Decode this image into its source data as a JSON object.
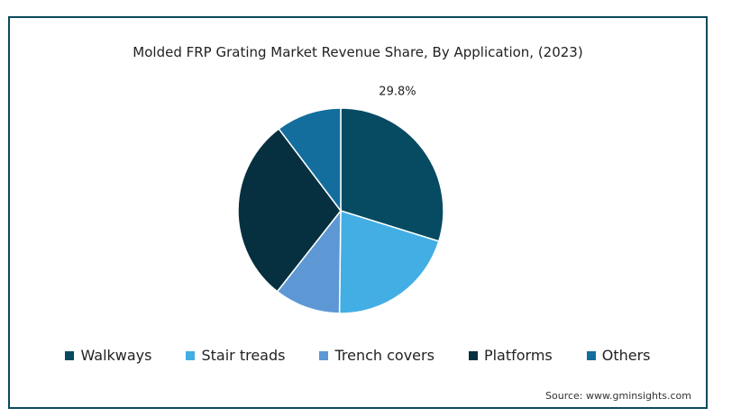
{
  "chart_data": {
    "type": "pie",
    "title": "Molded FRP Grating Market Revenue Share, By Application, (2023)",
    "categories": [
      "Walkways",
      "Stair treads",
      "Trench covers",
      "Platforms",
      "Others"
    ],
    "values": [
      29.8,
      20.4,
      10.4,
      29.1,
      10.3
    ],
    "data_labels": [
      "29.8%",
      "",
      "",
      "",
      ""
    ],
    "colors": [
      "#064b62",
      "#42aee4",
      "#5d98d4",
      "#06303f",
      "#136e9e"
    ],
    "legend_position": "bottom",
    "start_angle_deg": 0,
    "direction": "clockwise"
  },
  "source": "Source: www.gminsights.com"
}
